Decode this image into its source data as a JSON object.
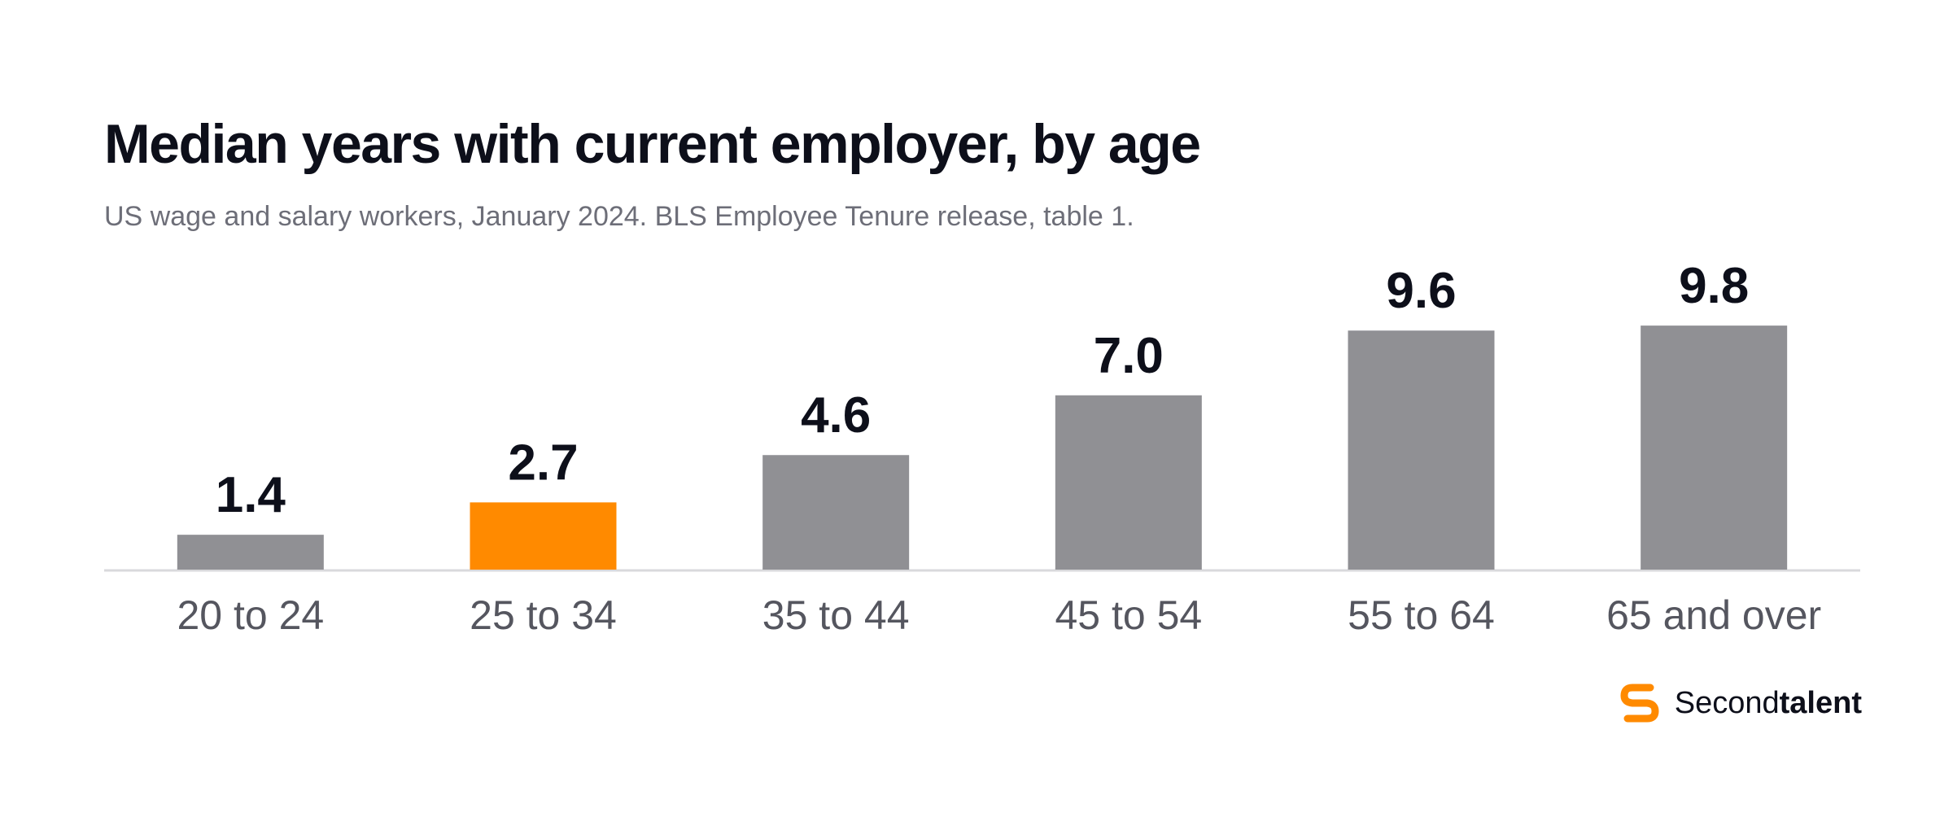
{
  "title": "Median years with current employer, by age",
  "subtitle": "US wage and salary workers, January 2024. BLS Employee Tenure release, table 1.",
  "brand": {
    "name_part1": "Second",
    "name_part2": "talent",
    "logo_icon": "secondtalent-s-logo-icon"
  },
  "colors": {
    "bar": "#909094",
    "highlight": "#ff8a00",
    "axis": "#d9d9dc",
    "text": "#0d0f1a",
    "muted": "#55565f"
  },
  "chart_data": {
    "type": "bar",
    "categories": [
      "20 to 24",
      "25 to 34",
      "35 to 44",
      "45 to 54",
      "55 to 64",
      "65 and over"
    ],
    "values": [
      1.4,
      2.7,
      4.6,
      7.0,
      9.6,
      9.8
    ],
    "value_labels": [
      "1.4",
      "2.7",
      "4.6",
      "7.0",
      "9.6",
      "9.8"
    ],
    "highlight_category": "25 to 34",
    "title": "Median years with current employer, by age",
    "xlabel": "",
    "ylabel": "",
    "ylim": [
      0,
      10
    ],
    "grid": false,
    "legend": "none"
  }
}
